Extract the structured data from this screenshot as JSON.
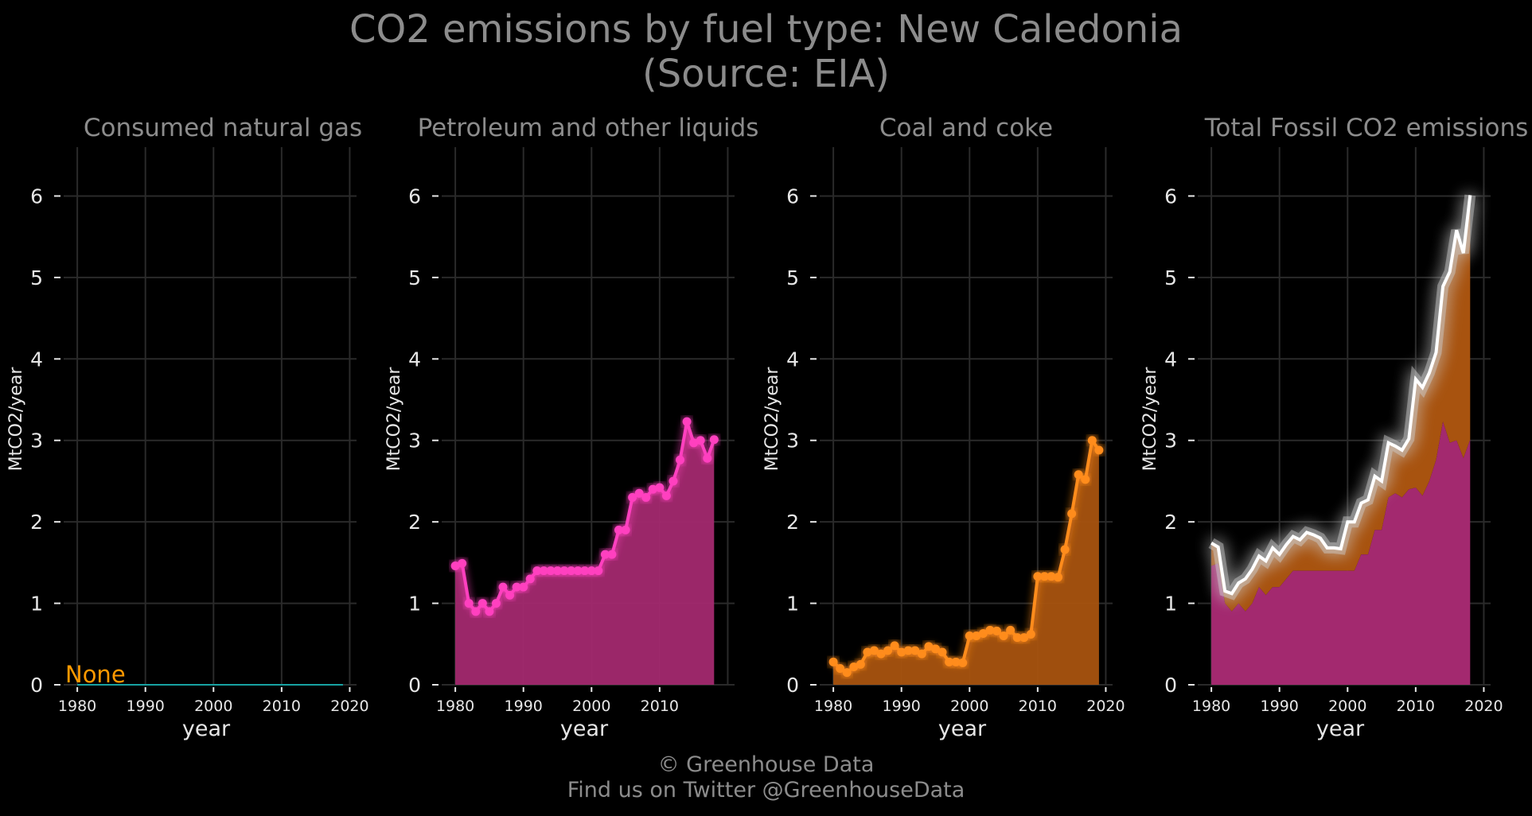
{
  "title": {
    "line1": "CO2 emissions by fuel type: New Caledonia",
    "line2": "(Source: EIA)"
  },
  "footer": {
    "line1": "© Greenhouse Data",
    "line2": "Find us on Twitter @GreenhouseData"
  },
  "colors": {
    "background": "#000000",
    "gas": "#17a2a2",
    "petroleum": "#ff3fbf",
    "petroleum_fill": "#a3296f",
    "coal": "#ff8c1a",
    "coal_fill": "#a8530f",
    "total": "#ffffff",
    "none_label": "#ff9900",
    "grid": "#2a2a2a"
  },
  "chart_data": [
    {
      "type": "line",
      "title": "Consumed natural gas",
      "xlabel": "year",
      "ylabel": "MtCO2/year",
      "xlim": [
        1978,
        2021
      ],
      "ylim": [
        0,
        6.6
      ],
      "xticks": [
        "1980",
        "1990",
        "2000",
        "2010",
        "2020"
      ],
      "yticks": [
        "0",
        "1",
        "2",
        "3",
        "4",
        "5",
        "6"
      ],
      "annotation": "None",
      "series": [
        {
          "x": [
            1980,
            2019
          ],
          "y": [
            0,
            0
          ]
        }
      ]
    },
    {
      "type": "area",
      "title": "Petroleum and other liquids",
      "xlabel": "year",
      "ylabel": "MtCO2/year",
      "xlim": [
        1978,
        2021
      ],
      "ylim": [
        0,
        6.6
      ],
      "xticks": [
        "1980",
        "1990",
        "2000",
        "2010"
      ],
      "yticks": [
        "0",
        "1",
        "2",
        "3",
        "4",
        "5",
        "6"
      ],
      "series": [
        {
          "x": [
            1980,
            1981,
            1982,
            1983,
            1984,
            1985,
            1986,
            1987,
            1988,
            1989,
            1990,
            1991,
            1992,
            1993,
            1994,
            1995,
            1996,
            1997,
            1998,
            1999,
            2000,
            2001,
            2002,
            2003,
            2004,
            2005,
            2006,
            2007,
            2008,
            2009,
            2010,
            2011,
            2012,
            2013,
            2014,
            2015,
            2016,
            2017,
            2018
          ],
          "y": [
            1.46,
            1.49,
            1.0,
            0.9,
            1.0,
            0.9,
            1.0,
            1.2,
            1.1,
            1.2,
            1.2,
            1.3,
            1.4,
            1.4,
            1.4,
            1.4,
            1.4,
            1.4,
            1.4,
            1.4,
            1.4,
            1.4,
            1.6,
            1.6,
            1.9,
            1.9,
            2.3,
            2.35,
            2.3,
            2.4,
            2.42,
            2.32,
            2.5,
            2.76,
            3.23,
            2.97,
            3.0,
            2.78,
            3.01
          ]
        }
      ]
    },
    {
      "type": "area",
      "title": "Coal and coke",
      "xlabel": "year",
      "ylabel": "MtCO2/year",
      "xlim": [
        1978,
        2021
      ],
      "ylim": [
        0,
        6.6
      ],
      "xticks": [
        "1980",
        "1990",
        "2000",
        "2010",
        "2020"
      ],
      "yticks": [
        "0",
        "1",
        "2",
        "3",
        "4",
        "5",
        "6"
      ],
      "series": [
        {
          "x": [
            1980,
            1981,
            1982,
            1983,
            1984,
            1985,
            1986,
            1987,
            1988,
            1989,
            1990,
            1991,
            1992,
            1993,
            1994,
            1995,
            1996,
            1997,
            1998,
            1999,
            2000,
            2001,
            2002,
            2003,
            2004,
            2005,
            2006,
            2007,
            2008,
            2009,
            2010,
            2011,
            2012,
            2013,
            2014,
            2015,
            2016,
            2017,
            2018,
            2019
          ],
          "y": [
            0.28,
            0.2,
            0.15,
            0.22,
            0.25,
            0.4,
            0.42,
            0.38,
            0.42,
            0.48,
            0.4,
            0.42,
            0.42,
            0.38,
            0.47,
            0.44,
            0.4,
            0.28,
            0.28,
            0.27,
            0.6,
            0.6,
            0.63,
            0.67,
            0.66,
            0.6,
            0.67,
            0.58,
            0.58,
            0.62,
            1.33,
            1.33,
            1.33,
            1.32,
            1.66,
            2.1,
            2.58,
            2.52,
            3.0,
            2.88
          ]
        }
      ]
    },
    {
      "type": "area",
      "title": "Total Fossil CO2 emissions",
      "xlabel": "year",
      "ylabel": "MtCO2/year",
      "xlim": [
        1978,
        2021
      ],
      "ylim": [
        0,
        6.6
      ],
      "xticks": [
        "1980",
        "1990",
        "2000",
        "2010",
        "2020"
      ],
      "yticks": [
        "0",
        "1",
        "2",
        "3",
        "4",
        "5",
        "6"
      ],
      "stacked": [
        "Petroleum and other liquids",
        "Coal and coke"
      ],
      "series": [
        {
          "x": [
            1980,
            1981,
            1982,
            1983,
            1984,
            1985,
            1986,
            1987,
            1988,
            1989,
            1990,
            1991,
            1992,
            1993,
            1994,
            1995,
            1996,
            1997,
            1998,
            1999,
            2000,
            2001,
            2002,
            2003,
            2004,
            2005,
            2006,
            2007,
            2008,
            2009,
            2010,
            2011,
            2012,
            2013,
            2014,
            2015,
            2016,
            2017,
            2018
          ],
          "y": [
            1.74,
            1.69,
            1.15,
            1.12,
            1.25,
            1.3,
            1.42,
            1.58,
            1.52,
            1.68,
            1.6,
            1.72,
            1.82,
            1.78,
            1.87,
            1.84,
            1.8,
            1.68,
            1.68,
            1.67,
            2.0,
            2.0,
            2.23,
            2.27,
            2.56,
            2.5,
            2.97,
            2.93,
            2.88,
            3.02,
            3.75,
            3.65,
            3.83,
            4.08,
            4.89,
            5.07,
            5.58,
            5.3,
            6.01
          ]
        }
      ]
    }
  ]
}
